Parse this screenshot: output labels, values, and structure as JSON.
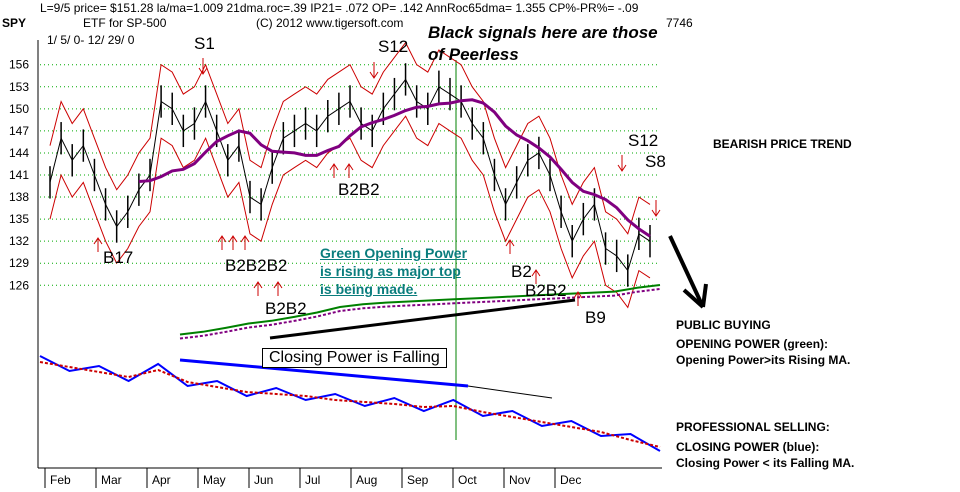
{
  "header": {
    "ticker": "SPY",
    "line1": "L=9/5  price= $151.28  la/ma=1.009 21dma.roc=.39 IP21= .072 OP= .142 AnnRoc65dma= 1.355 CP%-PR%= -.09",
    "etf": "ETF for SP-500",
    "copyright": "(C) 2012 www.tigersoft.com",
    "date_range": "1/ 5/ 0-  12/ 29/ 0",
    "code": "7746"
  },
  "annotations": {
    "black_signals": "Black signals here are those of Peerless",
    "green_op": "Green Opening Power is rising as major top is being made.",
    "green_op_lines": [
      "Green Opening Power",
      "is rising as major top",
      "is being made."
    ],
    "closing_power_falling": "Closing Power is Falling"
  },
  "right_panel": {
    "bearish": "BEARISH PRICE TREND",
    "public_buying": "PUBLIC BUYING",
    "opening_power": "OPENING POWER (green):",
    "opening_power_desc": "Opening Power>its Rising MA.",
    "professional_selling": "PROFESSIONAL SELLING:",
    "closing_power": "CLOSING POWER (blue):",
    "closing_power_desc": "Closing Power < its Falling MA."
  },
  "signals": [
    {
      "label": "S1"
    },
    {
      "label": "S12"
    },
    {
      "label": "S12"
    },
    {
      "label": "S8"
    },
    {
      "label": "B17"
    },
    {
      "label": "B2B2B2"
    },
    {
      "label": "B2B2"
    },
    {
      "label": "B2B2"
    },
    {
      "label": "B2"
    },
    {
      "label": "B2B2"
    },
    {
      "label": "B9"
    }
  ],
  "colors": {
    "price": "#000000",
    "bands": "#cc0000",
    "ma65": "#800080",
    "opening_power": "#008000",
    "closing_power": "#0000ff",
    "cp_ma": "#cc0000",
    "grid": "#00aa00",
    "arrow": "#cc0000"
  },
  "chart_data": {
    "type": "line",
    "title": "SPY",
    "y_ticks": [
      156,
      153,
      150,
      147,
      144,
      141,
      138,
      135,
      132,
      129,
      126
    ],
    "ylim": [
      124,
      158
    ],
    "months": [
      "Feb",
      "Mar",
      "Apr",
      "May",
      "Jun",
      "Jul",
      "Aug",
      "Sep",
      "Oct",
      "Nov",
      "Dec"
    ],
    "series": [
      {
        "name": "price",
        "values": [
          140,
          146,
          143,
          145,
          141,
          137,
          134,
          136,
          139,
          141,
          151,
          150,
          147,
          148,
          151,
          147,
          143,
          145,
          138,
          137,
          142,
          146,
          147,
          148,
          147,
          149,
          150,
          151,
          148,
          147,
          150,
          152,
          154,
          151,
          150,
          153,
          152,
          151,
          148,
          146,
          141,
          137,
          140,
          143,
          144,
          141,
          136,
          132,
          135,
          137,
          131,
          130,
          128,
          133,
          132
        ]
      },
      {
        "name": "opening_power",
        "values": [
          0.1,
          0.15,
          0.22,
          0.3,
          0.35,
          0.42,
          0.5,
          0.6,
          0.65,
          0.68,
          0.7,
          0.72,
          0.74,
          0.76,
          0.78,
          0.8,
          0.82,
          0.84,
          0.86,
          0.88,
          0.95,
          1.0
        ]
      },
      {
        "name": "closing_power",
        "values": [
          1.0,
          0.95,
          0.9,
          0.85,
          0.92,
          0.8,
          0.75,
          0.7,
          0.68,
          0.66,
          0.62,
          0.6,
          0.58,
          0.55,
          0.56,
          0.5,
          0.45,
          0.4,
          0.35,
          0.3,
          0.22,
          0.15
        ]
      }
    ]
  }
}
